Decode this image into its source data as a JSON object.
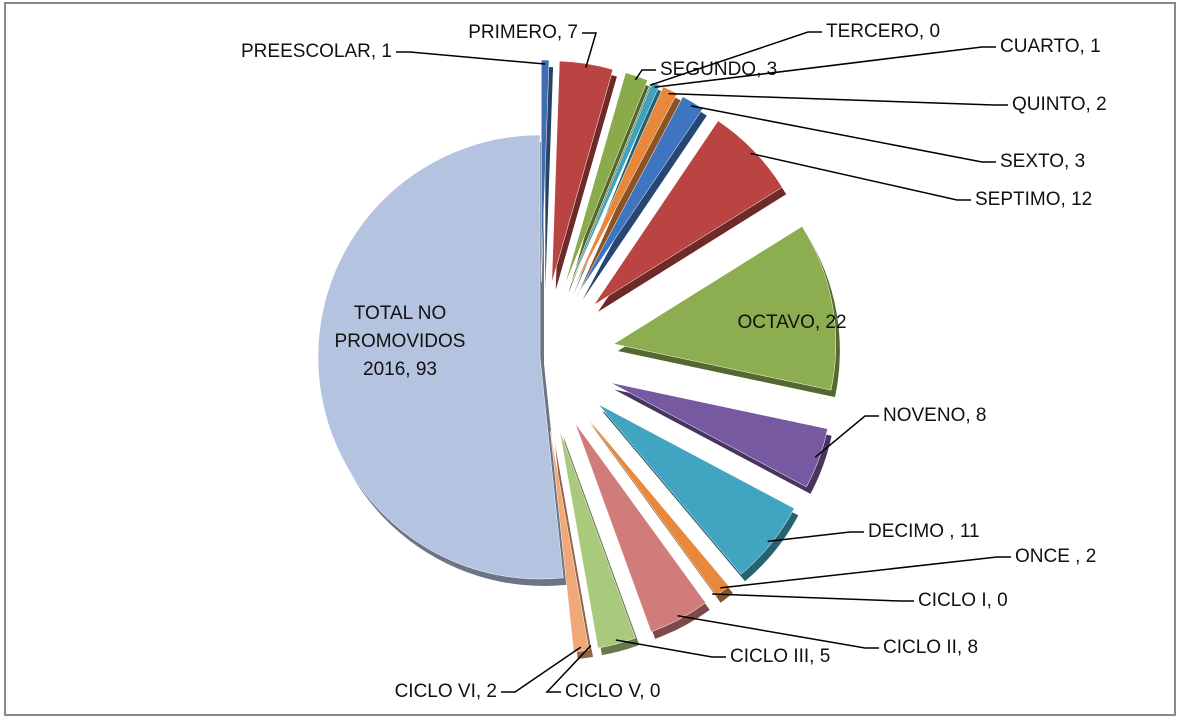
{
  "chart_data": {
    "type": "pie",
    "categories": [
      "PREESCOLAR",
      "PRIMERO",
      "SEGUNDO",
      "TERCERO",
      "CUARTO",
      "QUINTO",
      "SEXTO",
      "SEPTIMO",
      "OCTAVO",
      "NOVENO",
      "DECIMO",
      "ONCE",
      "CICLO I",
      "CICLO II",
      "CICLO III",
      "CICLO V",
      "CICLO VI",
      "TOTAL NO PROMOVIDOS 2016"
    ],
    "values": [
      1,
      7,
      3,
      0,
      1,
      2,
      3,
      12,
      22,
      8,
      11,
      2,
      0,
      8,
      5,
      0,
      2,
      93
    ],
    "value_labels": [
      "PREESCOLAR, 1",
      "PRIMERO, 7",
      "SEGUNDO, 3",
      "TERCERO, 0",
      "CUARTO, 1",
      "QUINTO, 2",
      "SEXTO, 3",
      "SEPTIMO, 12",
      "OCTAVO, 22",
      "NOVENO, 8",
      "DECIMO , 11",
      "ONCE , 2",
      "CICLO I, 0",
      "CICLO II, 8",
      "CICLO III, 5",
      "CICLO V, 0",
      "CICLO VI, 2",
      "TOTAL NO PROMOVIDOS 2016, 93"
    ],
    "colors": [
      "#3f6fb0",
      "#b94441",
      "#89ab4c",
      "#7a5ea0",
      "#3ea2bd",
      "#e8883c",
      "#3f74c0",
      "#b94441",
      "#8cad50",
      "#7659a0",
      "#41a4c0",
      "#e8883c",
      "#2d4f80",
      "#d07c7a",
      "#a9c97d",
      "#9e8cbf",
      "#f0a878",
      "#b4c3df"
    ]
  }
}
